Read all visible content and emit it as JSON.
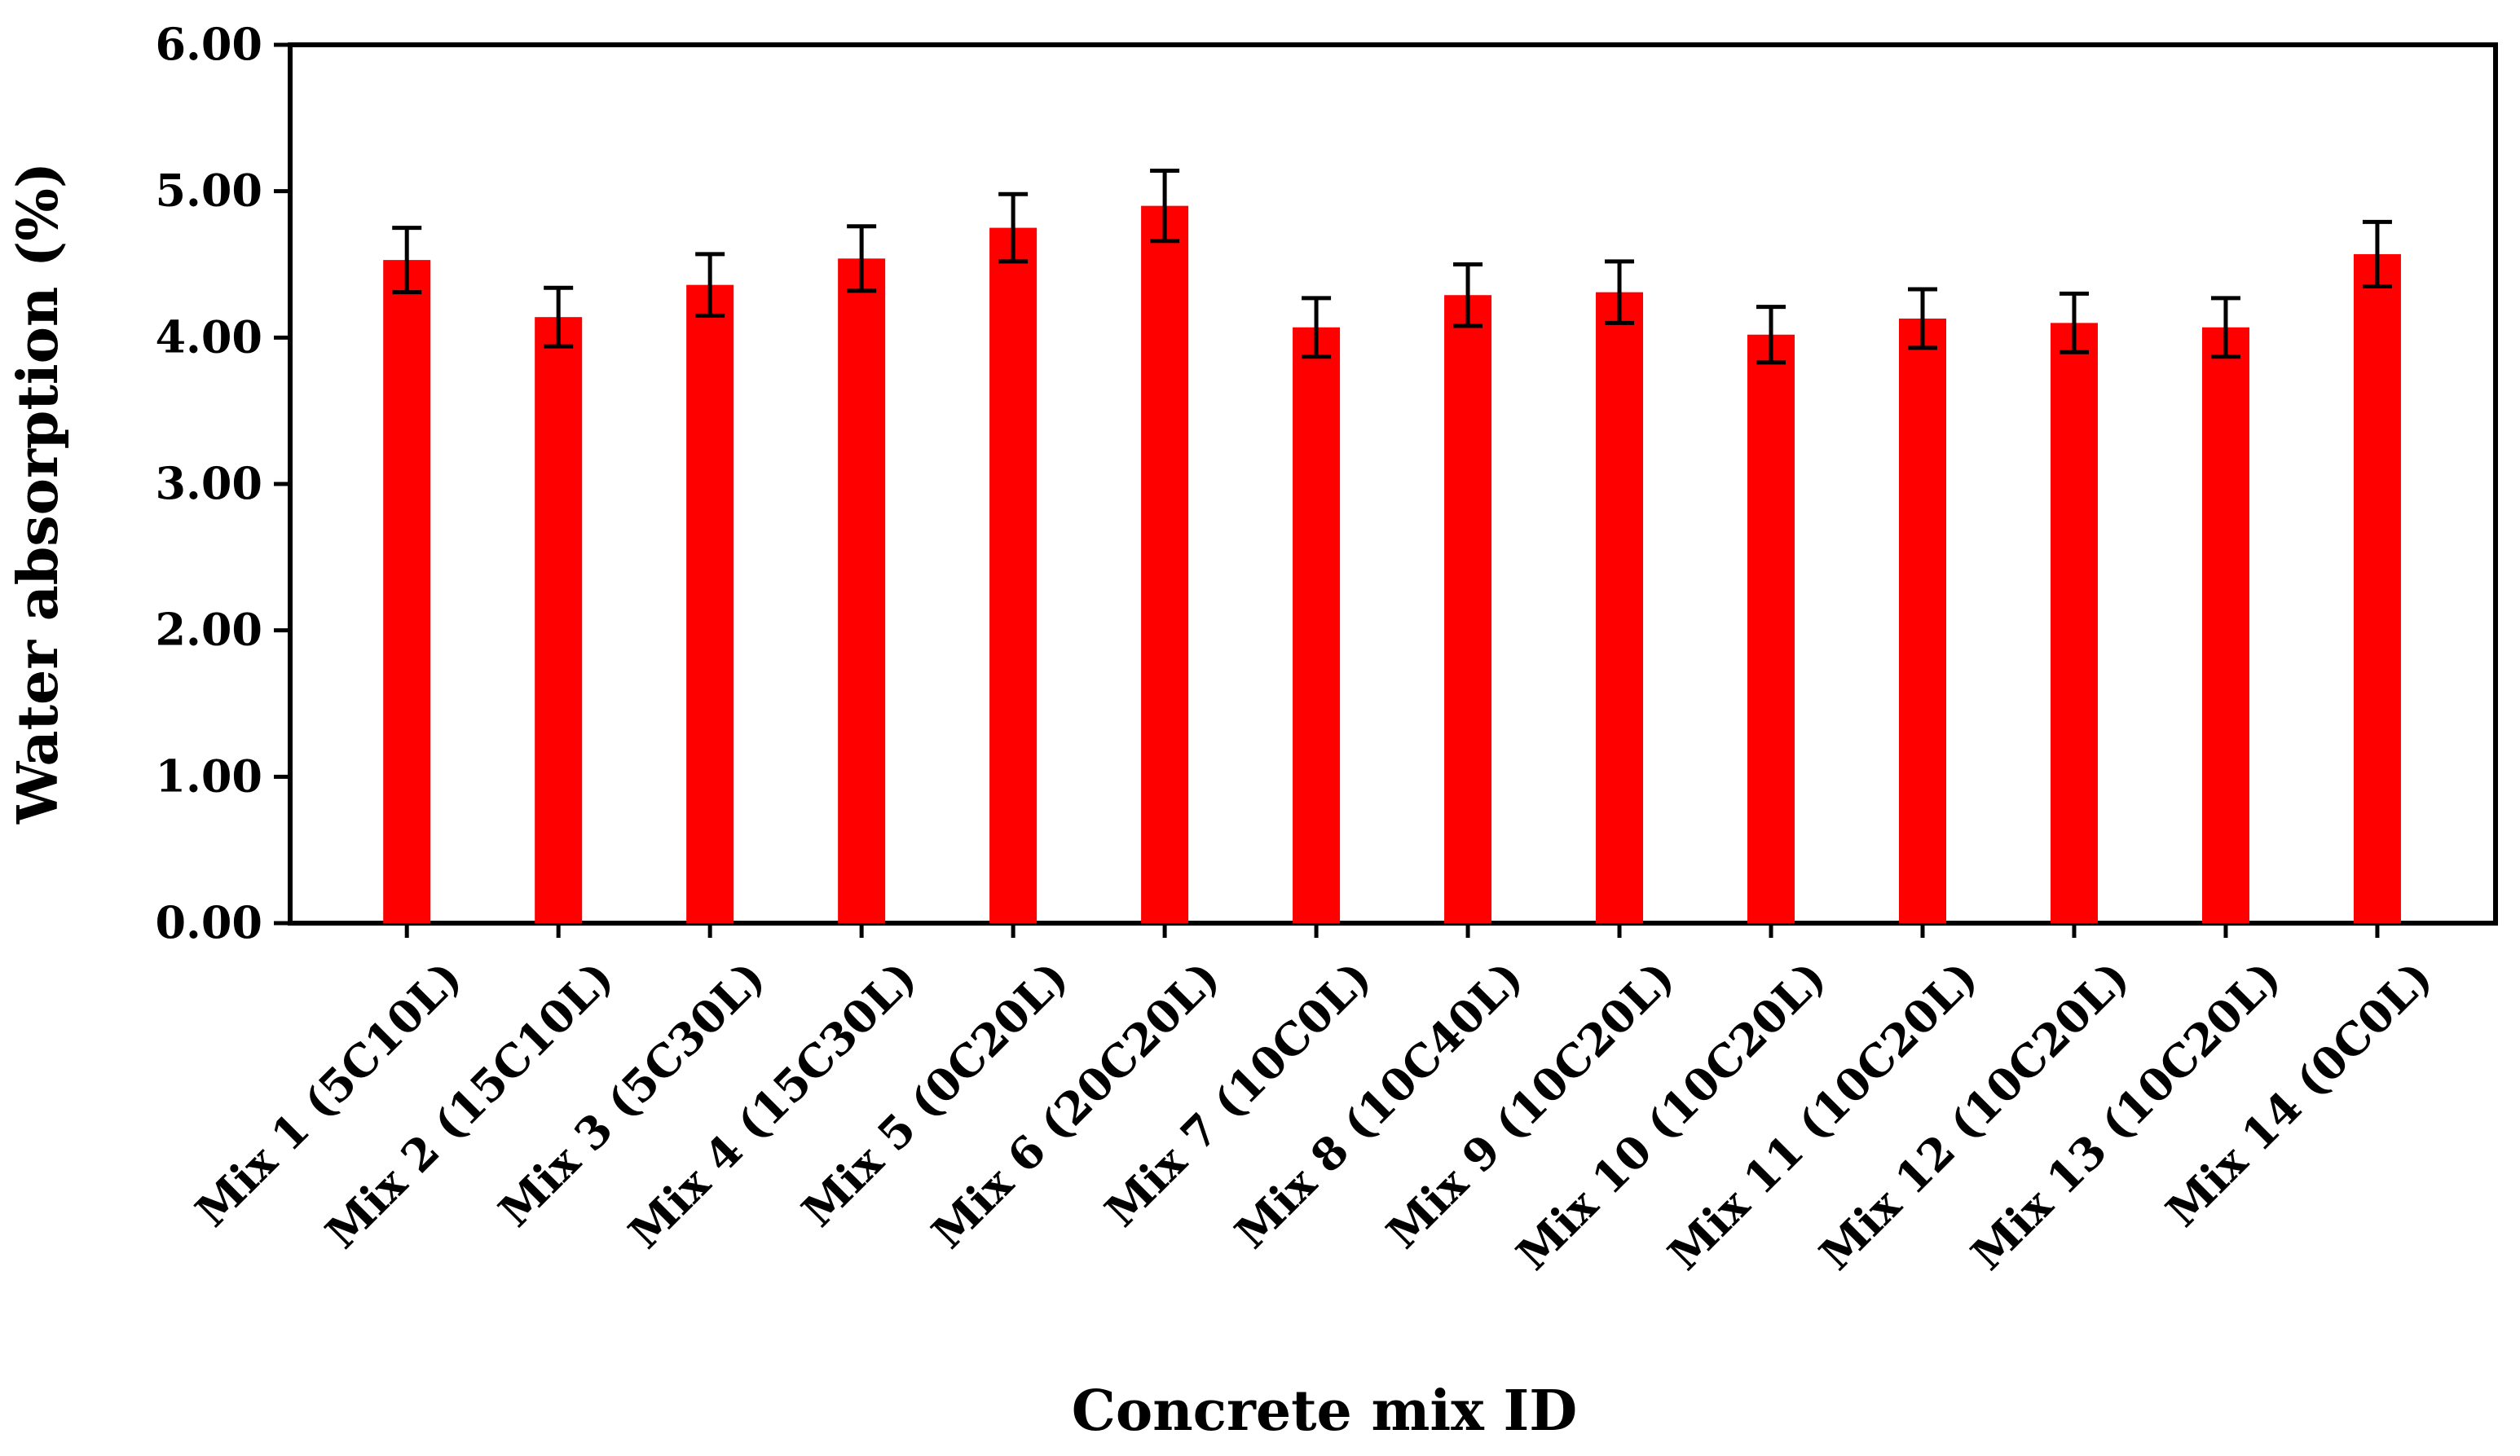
{
  "chart_data": {
    "type": "bar",
    "title": "",
    "xlabel": "Concrete mix ID",
    "ylabel": "Water absorption (%)",
    "ylim": [
      0,
      6
    ],
    "yticks": [
      "0.00",
      "1.00",
      "2.00",
      "3.00",
      "4.00",
      "5.00",
      "6.00"
    ],
    "categories": [
      "Mix 1 (5C10L)",
      "Mix 2 (15C10L)",
      "Mix 3 (5C30L)",
      "Mix 4 (15C30L)",
      "Mix 5 (0C20L)",
      "Mix 6 (20C20L)",
      "Mix 7 (10C0L)",
      "Mix 8 (10C40L)",
      "Mix 9 (10C20L)",
      "Mix 10 (10C20L)",
      "Mix 11 (10C20L)",
      "Mix 12 (10C20L)",
      "Mix 13 (10C20L)",
      "Mix 14 (0C0L)"
    ],
    "values": [
      4.53,
      4.14,
      4.36,
      4.54,
      4.75,
      4.9,
      4.07,
      4.29,
      4.31,
      4.02,
      4.13,
      4.1,
      4.07,
      4.57
    ],
    "error": [
      0.22,
      0.2,
      0.21,
      0.22,
      0.23,
      0.24,
      0.2,
      0.21,
      0.21,
      0.19,
      0.2,
      0.2,
      0.2,
      0.22
    ],
    "grid": false,
    "legend": "none",
    "colors": {
      "bar": "#ff0000",
      "axis": "#000000",
      "error_bar": "#000000"
    }
  }
}
